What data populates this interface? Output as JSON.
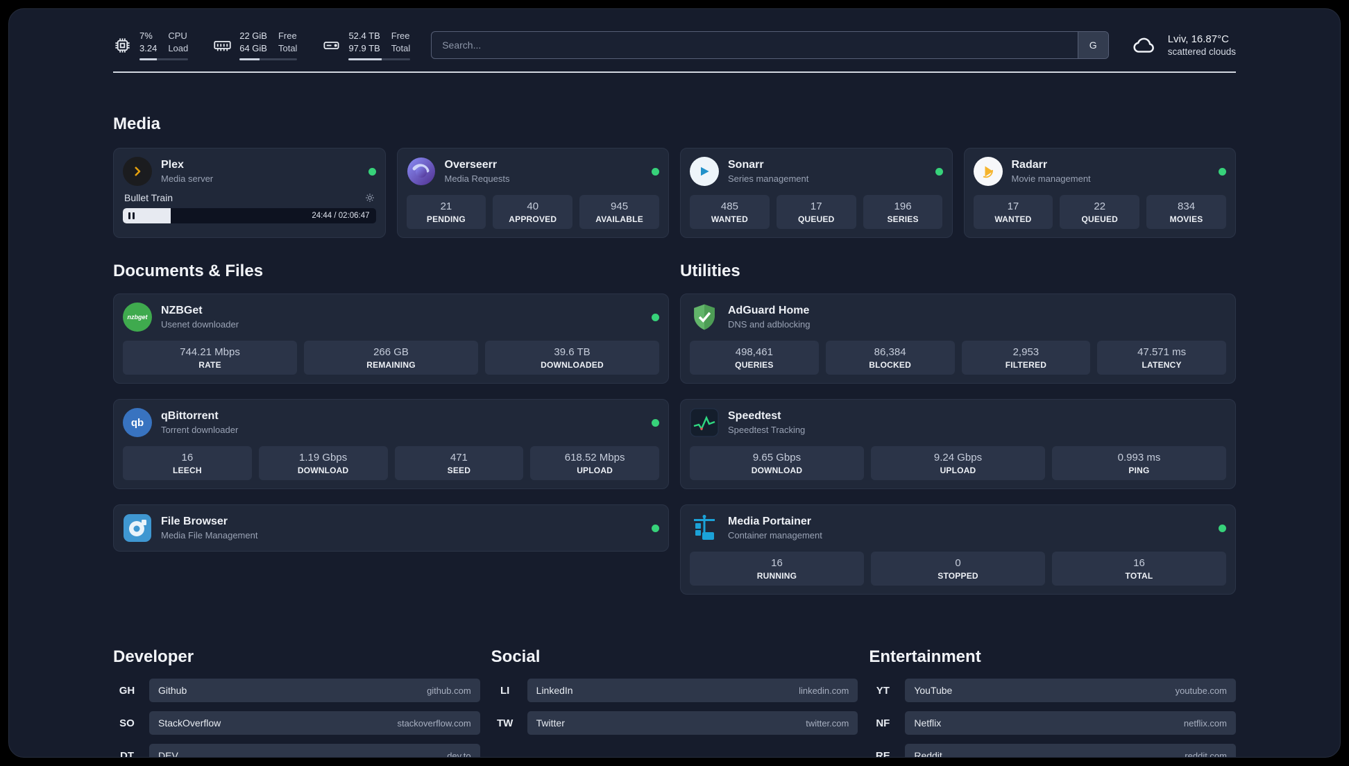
{
  "theme": {
    "background": "#161c2c",
    "card": "#202839",
    "stat_box": "#2b3448",
    "bookmark_bar": "#2e374a",
    "text_primary": "#eef1f6",
    "text_secondary": "#9aa3b5",
    "status_online": "#37d27a",
    "divider": "#d3d8e1",
    "accent_plex": "#e5a00d",
    "accent_overseerr": "#6366f1",
    "accent_sonarr": "#2191c9",
    "accent_radarr": "#f5b42c",
    "accent_nzbget": "#3faa4e",
    "accent_qbittorrent": "#3873c0",
    "accent_filebrowser": "#3f97d1",
    "accent_adguard": "#62b56a",
    "accent_speedtest": "#2fd880",
    "accent_portainer": "#1ba2d8"
  },
  "topbar": {
    "metrics": [
      {
        "icon": "cpu-icon",
        "value_top": "7%",
        "value_bottom": "3.24",
        "label_top": "CPU",
        "label_bottom": "Load",
        "bar_pct": 36
      },
      {
        "icon": "ram-icon",
        "value_top": "22 GiB",
        "value_bottom": "64 GiB",
        "label_top": "Free",
        "label_bottom": "Total",
        "bar_pct": 34
      },
      {
        "icon": "disk-icon",
        "value_top": "52.4 TB",
        "value_bottom": "97.9 TB",
        "label_top": "Free",
        "label_bottom": "Total",
        "bar_pct": 54
      }
    ],
    "search": {
      "placeholder": "Search...",
      "button_label": "G"
    },
    "weather": {
      "icon": "cloud-icon",
      "location": "Lviv, 16.87°C",
      "condition": "scattered clouds"
    }
  },
  "media_section": {
    "title": "Media",
    "cards": [
      {
        "icon": "plex-icon",
        "name": "Plex",
        "subtitle": "Media server",
        "online": true,
        "player": {
          "title": "Bullet Train",
          "progress_pct": 19,
          "time": "24:44 / 02:06:47"
        }
      },
      {
        "icon": "overseerr-icon",
        "name": "Overseerr",
        "subtitle": "Media Requests",
        "online": true,
        "stats": [
          {
            "value": "21",
            "label": "PENDING"
          },
          {
            "value": "40",
            "label": "APPROVED"
          },
          {
            "value": "945",
            "label": "AVAILABLE"
          }
        ]
      },
      {
        "icon": "sonarr-icon",
        "name": "Sonarr",
        "subtitle": "Series management",
        "online": true,
        "stats": [
          {
            "value": "485",
            "label": "WANTED"
          },
          {
            "value": "17",
            "label": "QUEUED"
          },
          {
            "value": "196",
            "label": "SERIES"
          }
        ]
      },
      {
        "icon": "radarr-icon",
        "name": "Radarr",
        "subtitle": "Movie management",
        "online": true,
        "stats": [
          {
            "value": "17",
            "label": "WANTED"
          },
          {
            "value": "22",
            "label": "QUEUED"
          },
          {
            "value": "834",
            "label": "MOVIES"
          }
        ]
      }
    ]
  },
  "columns": [
    {
      "title": "Documents & Files",
      "cards": [
        {
          "icon": "nzbget-icon",
          "name": "NZBGet",
          "subtitle": "Usenet downloader",
          "online": true,
          "stats": [
            {
              "value": "744.21 Mbps",
              "label": "RATE"
            },
            {
              "value": "266 GB",
              "label": "REMAINING"
            },
            {
              "value": "39.6 TB",
              "label": "DOWNLOADED"
            }
          ]
        },
        {
          "icon": "qbittorrent-icon",
          "name": "qBittorrent",
          "subtitle": "Torrent downloader",
          "online": true,
          "stats": [
            {
              "value": "16",
              "label": "LEECH"
            },
            {
              "value": "1.19 Gbps",
              "label": "DOWNLOAD"
            },
            {
              "value": "471",
              "label": "SEED"
            },
            {
              "value": "618.52 Mbps",
              "label": "UPLOAD"
            }
          ]
        },
        {
          "icon": "filebrowser-icon",
          "name": "File Browser",
          "subtitle": "Media File Management",
          "online": true,
          "stats": []
        }
      ]
    },
    {
      "title": "Utilities",
      "cards": [
        {
          "icon": "adguard-icon",
          "name": "AdGuard Home",
          "subtitle": "DNS and adblocking",
          "online": false,
          "stats": [
            {
              "value": "498,461",
              "label": "QUERIES"
            },
            {
              "value": "86,384",
              "label": "BLOCKED"
            },
            {
              "value": "2,953",
              "label": "FILTERED"
            },
            {
              "value": "47.571 ms",
              "label": "LATENCY"
            }
          ]
        },
        {
          "icon": "speedtest-icon",
          "name": "Speedtest",
          "subtitle": "Speedtest Tracking",
          "online": false,
          "stats": [
            {
              "value": "9.65 Gbps",
              "label": "DOWNLOAD"
            },
            {
              "value": "9.24 Gbps",
              "label": "UPLOAD"
            },
            {
              "value": "0.993 ms",
              "label": "PING"
            }
          ]
        },
        {
          "icon": "portainer-icon",
          "name": "Media Portainer",
          "subtitle": "Container management",
          "online": true,
          "stats": [
            {
              "value": "16",
              "label": "RUNNING"
            },
            {
              "value": "0",
              "label": "STOPPED"
            },
            {
              "value": "16",
              "label": "TOTAL"
            }
          ]
        }
      ]
    }
  ],
  "bookmark_sections": [
    {
      "title": "Developer",
      "items": [
        {
          "abbr": "GH",
          "name": "Github",
          "url": "github.com"
        },
        {
          "abbr": "SO",
          "name": "StackOverflow",
          "url": "stackoverflow.com"
        },
        {
          "abbr": "DT",
          "name": "DEV",
          "url": "dev.to"
        }
      ]
    },
    {
      "title": "Social",
      "items": [
        {
          "abbr": "LI",
          "name": "LinkedIn",
          "url": "linkedin.com"
        },
        {
          "abbr": "TW",
          "name": "Twitter",
          "url": "twitter.com"
        }
      ]
    },
    {
      "title": "Entertainment",
      "items": [
        {
          "abbr": "YT",
          "name": "YouTube",
          "url": "youtube.com"
        },
        {
          "abbr": "NF",
          "name": "Netflix",
          "url": "netflix.com"
        },
        {
          "abbr": "RE",
          "name": "Reddit",
          "url": "reddit.com"
        }
      ]
    }
  ]
}
